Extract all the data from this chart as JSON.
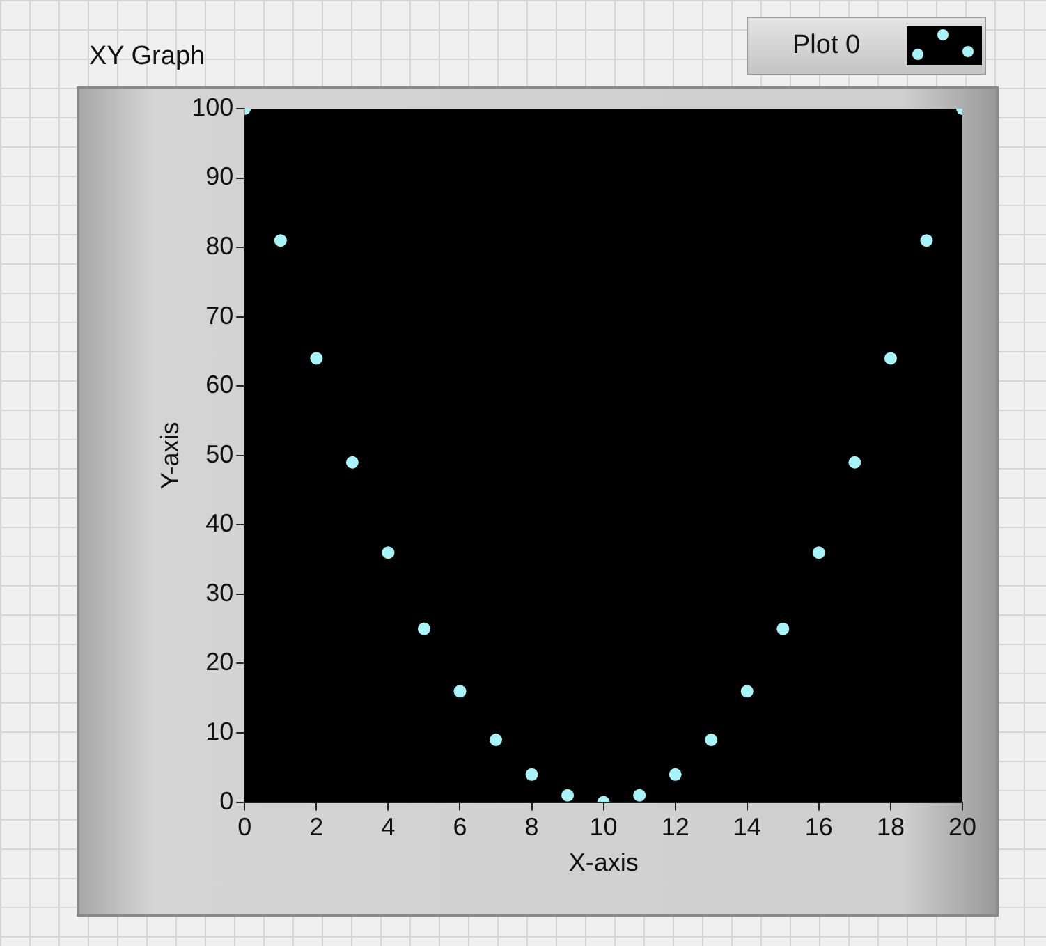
{
  "chart_data": {
    "type": "scatter",
    "title": "XY Graph",
    "xlabel": "X-axis",
    "ylabel": "Y-axis",
    "x": [
      0,
      1,
      2,
      3,
      4,
      5,
      6,
      7,
      8,
      9,
      10,
      11,
      12,
      13,
      14,
      15,
      16,
      17,
      18,
      19,
      20
    ],
    "series": [
      {
        "name": "Plot 0",
        "color": "#a6f4f8",
        "values": [
          100,
          81,
          64,
          49,
          36,
          25,
          16,
          9,
          4,
          1,
          0,
          1,
          4,
          9,
          16,
          25,
          36,
          49,
          64,
          81,
          100
        ]
      }
    ],
    "xlim": [
      0,
      20
    ],
    "xticks": [
      0,
      2,
      4,
      6,
      8,
      10,
      12,
      14,
      16,
      18,
      20
    ],
    "ylim": [
      0,
      100
    ],
    "yticks": [
      0,
      10,
      20,
      30,
      40,
      50,
      60,
      70,
      80,
      90,
      100
    ],
    "grid": false,
    "legend": "top right",
    "marker": "circle"
  }
}
